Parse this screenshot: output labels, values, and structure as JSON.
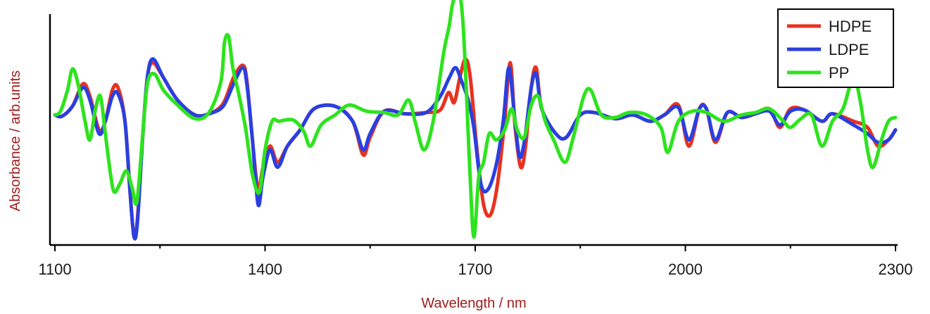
{
  "chart_data": {
    "type": "line",
    "xlabel": "Wavelength / nm",
    "ylabel": "Absorbance / arb.units",
    "xlim": [
      1100,
      2300
    ],
    "ylim": [
      -1.0,
      0.8
    ],
    "x_ticks": [
      "1100",
      "1400",
      "1700",
      "2000",
      "2300"
    ],
    "x_minor_step": 150,
    "y_tick_labels": false,
    "grid": false,
    "legend_position": "top-right",
    "series": [
      {
        "name": "HDPE",
        "color": "#e8321e",
        "points": [
          [
            1100,
            0.0
          ],
          [
            1110,
            -0.01
          ],
          [
            1125,
            0.07
          ],
          [
            1140,
            0.25
          ],
          [
            1150,
            0.15
          ],
          [
            1163,
            -0.12
          ],
          [
            1172,
            -0.05
          ],
          [
            1182,
            0.2
          ],
          [
            1190,
            0.22
          ],
          [
            1200,
            -0.05
          ],
          [
            1207,
            -0.6
          ],
          [
            1213,
            -0.98
          ],
          [
            1218,
            -0.82
          ],
          [
            1225,
            -0.2
          ],
          [
            1232,
            0.3
          ],
          [
            1240,
            0.42
          ],
          [
            1255,
            0.3
          ],
          [
            1275,
            0.12
          ],
          [
            1300,
            0.0
          ],
          [
            1320,
            0.01
          ],
          [
            1340,
            0.09
          ],
          [
            1355,
            0.3
          ],
          [
            1368,
            0.4
          ],
          [
            1374,
            0.28
          ],
          [
            1382,
            -0.2
          ],
          [
            1390,
            -0.6
          ],
          [
            1397,
            -0.42
          ],
          [
            1407,
            -0.25
          ],
          [
            1418,
            -0.38
          ],
          [
            1432,
            -0.25
          ],
          [
            1450,
            -0.12
          ],
          [
            1470,
            0.05
          ],
          [
            1500,
            0.07
          ],
          [
            1525,
            -0.05
          ],
          [
            1540,
            -0.32
          ],
          [
            1550,
            -0.18
          ],
          [
            1570,
            0.03
          ],
          [
            1600,
            0.01
          ],
          [
            1630,
            0.02
          ],
          [
            1650,
            0.04
          ],
          [
            1662,
            0.18
          ],
          [
            1670,
            0.1
          ],
          [
            1678,
            0.3
          ],
          [
            1686,
            0.45
          ],
          [
            1693,
            0.3
          ],
          [
            1702,
            -0.25
          ],
          [
            1712,
            -0.72
          ],
          [
            1722,
            -0.8
          ],
          [
            1732,
            -0.55
          ],
          [
            1742,
            -0.05
          ],
          [
            1750,
            0.42
          ],
          [
            1757,
            -0.1
          ],
          [
            1765,
            -0.42
          ],
          [
            1772,
            -0.25
          ],
          [
            1780,
            0.22
          ],
          [
            1787,
            0.38
          ],
          [
            1795,
            0.05
          ],
          [
            1815,
            -0.15
          ],
          [
            1830,
            -0.18
          ],
          [
            1850,
            0.0
          ],
          [
            1870,
            0.02
          ],
          [
            1900,
            -0.03
          ],
          [
            1925,
            0.0
          ],
          [
            1950,
            -0.05
          ],
          [
            1970,
            0.0
          ],
          [
            1990,
            0.08
          ],
          [
            2005,
            -0.25
          ],
          [
            2020,
            0.05
          ],
          [
            2030,
            0.05
          ],
          [
            2043,
            -0.22
          ],
          [
            2060,
            0.02
          ],
          [
            2080,
            -0.02
          ],
          [
            2100,
            0.01
          ],
          [
            2120,
            0.05
          ],
          [
            2135,
            -0.1
          ],
          [
            2150,
            0.05
          ],
          [
            2170,
            0.04
          ],
          [
            2195,
            -0.05
          ],
          [
            2210,
            0.01
          ],
          [
            2240,
            -0.05
          ],
          [
            2260,
            -0.1
          ],
          [
            2275,
            -0.25
          ],
          [
            2290,
            -0.2
          ],
          [
            2300,
            -0.12
          ]
        ]
      },
      {
        "name": "LDPE",
        "color": "#2a3fe0",
        "points": [
          [
            1100,
            0.0
          ],
          [
            1110,
            -0.01
          ],
          [
            1125,
            0.07
          ],
          [
            1140,
            0.22
          ],
          [
            1150,
            0.12
          ],
          [
            1163,
            -0.15
          ],
          [
            1172,
            -0.05
          ],
          [
            1182,
            0.15
          ],
          [
            1190,
            0.17
          ],
          [
            1200,
            -0.05
          ],
          [
            1207,
            -0.6
          ],
          [
            1213,
            -0.98
          ],
          [
            1218,
            -0.85
          ],
          [
            1225,
            -0.2
          ],
          [
            1232,
            0.3
          ],
          [
            1240,
            0.45
          ],
          [
            1255,
            0.3
          ],
          [
            1275,
            0.12
          ],
          [
            1300,
            0.0
          ],
          [
            1320,
            0.01
          ],
          [
            1340,
            0.07
          ],
          [
            1355,
            0.25
          ],
          [
            1368,
            0.38
          ],
          [
            1374,
            0.25
          ],
          [
            1382,
            -0.2
          ],
          [
            1390,
            -0.72
          ],
          [
            1397,
            -0.5
          ],
          [
            1407,
            -0.28
          ],
          [
            1418,
            -0.42
          ],
          [
            1432,
            -0.25
          ],
          [
            1450,
            -0.12
          ],
          [
            1470,
            0.05
          ],
          [
            1500,
            0.07
          ],
          [
            1525,
            -0.05
          ],
          [
            1540,
            -0.28
          ],
          [
            1550,
            -0.15
          ],
          [
            1570,
            0.03
          ],
          [
            1600,
            0.01
          ],
          [
            1630,
            0.02
          ],
          [
            1650,
            0.15
          ],
          [
            1663,
            0.3
          ],
          [
            1672,
            0.38
          ],
          [
            1680,
            0.28
          ],
          [
            1690,
            0.12
          ],
          [
            1698,
            -0.1
          ],
          [
            1708,
            -0.55
          ],
          [
            1718,
            -0.6
          ],
          [
            1730,
            -0.4
          ],
          [
            1740,
            -0.05
          ],
          [
            1748,
            0.38
          ],
          [
            1756,
            0.0
          ],
          [
            1763,
            -0.33
          ],
          [
            1770,
            -0.22
          ],
          [
            1780,
            0.22
          ],
          [
            1787,
            0.33
          ],
          [
            1795,
            0.05
          ],
          [
            1815,
            -0.15
          ],
          [
            1830,
            -0.18
          ],
          [
            1850,
            0.0
          ],
          [
            1870,
            0.02
          ],
          [
            1900,
            -0.03
          ],
          [
            1925,
            0.0
          ],
          [
            1950,
            -0.05
          ],
          [
            1970,
            0.0
          ],
          [
            1990,
            0.06
          ],
          [
            2005,
            -0.2
          ],
          [
            2020,
            0.05
          ],
          [
            2030,
            0.05
          ],
          [
            2043,
            -0.2
          ],
          [
            2060,
            0.02
          ],
          [
            2080,
            -0.02
          ],
          [
            2100,
            0.01
          ],
          [
            2120,
            0.03
          ],
          [
            2135,
            -0.08
          ],
          [
            2150,
            0.03
          ],
          [
            2170,
            0.04
          ],
          [
            2195,
            -0.05
          ],
          [
            2210,
            0.01
          ],
          [
            2240,
            -0.08
          ],
          [
            2260,
            -0.15
          ],
          [
            2275,
            -0.22
          ],
          [
            2290,
            -0.2
          ],
          [
            2300,
            -0.12
          ]
        ]
      },
      {
        "name": "PP",
        "color": "#2ee31e",
        "points": [
          [
            1100,
            0.0
          ],
          [
            1108,
            0.03
          ],
          [
            1118,
            0.2
          ],
          [
            1125,
            0.37
          ],
          [
            1133,
            0.25
          ],
          [
            1143,
            -0.05
          ],
          [
            1150,
            -0.2
          ],
          [
            1158,
            0.05
          ],
          [
            1165,
            0.15
          ],
          [
            1172,
            -0.15
          ],
          [
            1180,
            -0.5
          ],
          [
            1185,
            -0.62
          ],
          [
            1193,
            -0.55
          ],
          [
            1202,
            -0.45
          ],
          [
            1210,
            -0.58
          ],
          [
            1217,
            -0.7
          ],
          [
            1225,
            -0.18
          ],
          [
            1232,
            0.25
          ],
          [
            1242,
            0.33
          ],
          [
            1255,
            0.2
          ],
          [
            1275,
            0.08
          ],
          [
            1300,
            -0.03
          ],
          [
            1320,
            0.02
          ],
          [
            1337,
            0.27
          ],
          [
            1342,
            0.58
          ],
          [
            1348,
            0.63
          ],
          [
            1354,
            0.38
          ],
          [
            1362,
            0.18
          ],
          [
            1372,
            -0.1
          ],
          [
            1382,
            -0.48
          ],
          [
            1392,
            -0.62
          ],
          [
            1400,
            -0.28
          ],
          [
            1410,
            -0.05
          ],
          [
            1420,
            -0.05
          ],
          [
            1440,
            -0.04
          ],
          [
            1455,
            -0.13
          ],
          [
            1465,
            -0.25
          ],
          [
            1480,
            -0.08
          ],
          [
            1500,
            0.0
          ],
          [
            1520,
            0.08
          ],
          [
            1545,
            0.03
          ],
          [
            1570,
            0.02
          ],
          [
            1590,
            0.0
          ],
          [
            1605,
            0.12
          ],
          [
            1615,
            -0.07
          ],
          [
            1627,
            -0.28
          ],
          [
            1640,
            -0.05
          ],
          [
            1655,
            0.5
          ],
          [
            1663,
            0.72
          ],
          [
            1668,
            0.9
          ],
          [
            1676,
            1.0
          ],
          [
            1683,
            0.7
          ],
          [
            1692,
            -0.4
          ],
          [
            1698,
            -0.98
          ],
          [
            1705,
            -0.5
          ],
          [
            1712,
            -0.38
          ],
          [
            1720,
            -0.15
          ],
          [
            1730,
            -0.2
          ],
          [
            1742,
            -0.12
          ],
          [
            1752,
            0.05
          ],
          [
            1760,
            -0.12
          ],
          [
            1770,
            -0.18
          ],
          [
            1780,
            0.08
          ],
          [
            1790,
            0.15
          ],
          [
            1800,
            -0.05
          ],
          [
            1812,
            -0.2
          ],
          [
            1828,
            -0.38
          ],
          [
            1840,
            -0.18
          ],
          [
            1855,
            0.15
          ],
          [
            1865,
            0.2
          ],
          [
            1880,
            0.0
          ],
          [
            1900,
            -0.02
          ],
          [
            1920,
            0.02
          ],
          [
            1945,
            0.0
          ],
          [
            1965,
            -0.1
          ],
          [
            1975,
            -0.3
          ],
          [
            1990,
            -0.05
          ],
          [
            2010,
            0.03
          ],
          [
            2030,
            0.02
          ],
          [
            2055,
            -0.05
          ],
          [
            2080,
            0.0
          ],
          [
            2100,
            0.02
          ],
          [
            2120,
            0.05
          ],
          [
            2140,
            -0.05
          ],
          [
            2150,
            -0.1
          ],
          [
            2165,
            -0.03
          ],
          [
            2180,
            0.0
          ],
          [
            2195,
            -0.25
          ],
          [
            2210,
            -0.05
          ],
          [
            2225,
            0.05
          ],
          [
            2240,
            0.3
          ],
          [
            2250,
            0.1
          ],
          [
            2260,
            -0.28
          ],
          [
            2268,
            -0.42
          ],
          [
            2280,
            -0.2
          ],
          [
            2290,
            -0.05
          ],
          [
            2300,
            -0.02
          ]
        ]
      }
    ]
  }
}
